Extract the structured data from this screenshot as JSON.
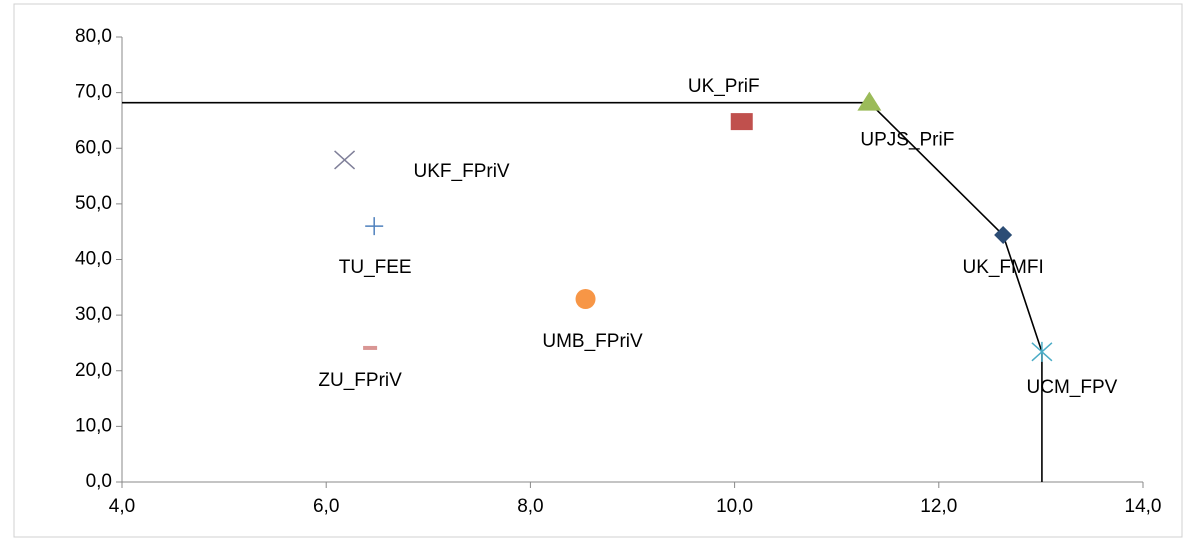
{
  "chart_data": {
    "type": "scatter",
    "xlim": [
      4,
      14
    ],
    "ylim": [
      0,
      80
    ],
    "xticks": [
      {
        "value": 4,
        "label": "4,0"
      },
      {
        "value": 6,
        "label": "6,0"
      },
      {
        "value": 8,
        "label": "8,0"
      },
      {
        "value": 10,
        "label": "10,0"
      },
      {
        "value": 12,
        "label": "12,0"
      },
      {
        "value": 14,
        "label": "14,0"
      }
    ],
    "yticks": [
      {
        "value": 0,
        "label": "0,0"
      },
      {
        "value": 10,
        "label": "10,0"
      },
      {
        "value": 20,
        "label": "20,0"
      },
      {
        "value": 30,
        "label": "30,0"
      },
      {
        "value": 40,
        "label": "40,0"
      },
      {
        "value": 50,
        "label": "50,0"
      },
      {
        "value": 60,
        "label": "60,0"
      },
      {
        "value": 70,
        "label": "70,0"
      },
      {
        "value": 80,
        "label": "80,0"
      }
    ],
    "grid": false,
    "series": [
      {
        "name": "UK_PriF",
        "color": "#c0504d",
        "marker": "square",
        "x": [
          10.07
        ],
        "values": [
          64.7
        ]
      },
      {
        "name": "UPJS_PriF",
        "color": "#9bbb59",
        "marker": "triangle",
        "x": [
          11.32
        ],
        "values": [
          68.2
        ]
      },
      {
        "name": "UKF_FPriV",
        "color": "#7f7f99",
        "marker": "x",
        "x": [
          6.18
        ],
        "values": [
          57.9
        ]
      },
      {
        "name": "TU_FEE",
        "color": "#4f81bd",
        "marker": "plus",
        "x": [
          6.47
        ],
        "values": [
          46.0
        ]
      },
      {
        "name": "UMB_FPriV",
        "color": "#f79646",
        "marker": "circle",
        "x": [
          8.54
        ],
        "values": [
          32.9
        ]
      },
      {
        "name": "ZU_FPriV",
        "color": "#d99694",
        "marker": "dash",
        "x": [
          6.43
        ],
        "values": [
          24.1
        ]
      },
      {
        "name": "UK_FMFI",
        "color": "#2c4d75",
        "marker": "diamond",
        "x": [
          12.63
        ],
        "values": [
          44.4
        ]
      },
      {
        "name": "UCM_FPV",
        "color": "#4bacc6",
        "marker": "star",
        "x": [
          13.01
        ],
        "values": [
          23.4
        ]
      }
    ],
    "frontier": {
      "color": "#000000",
      "x": [
        4,
        11.32,
        12.63,
        13.01,
        13.01
      ],
      "values": [
        68.2,
        68.2,
        44.4,
        23.4,
        0
      ]
    }
  }
}
